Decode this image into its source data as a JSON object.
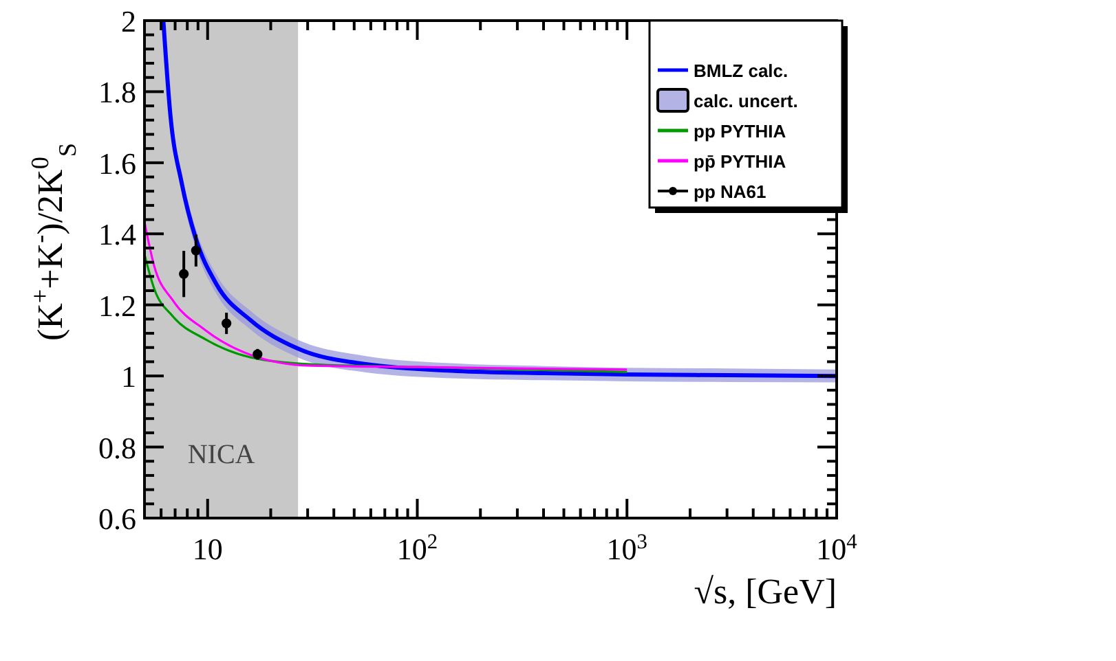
{
  "chart_data": {
    "type": "line",
    "xlabel": "√s, [GeV]",
    "ylabel": "(K$^{+}$+K$^{-}$)/2K$^{0}$$_{S}$",
    "log": "x",
    "xlim": [
      5,
      10000
    ],
    "xticks": [
      {
        "value": 6,
        "label": null
      },
      {
        "value": 7,
        "label": null
      },
      {
        "value": 8,
        "label": null
      },
      {
        "value": 9,
        "label": null
      },
      10,
      {
        "value": 20,
        "label": null
      },
      {
        "value": 30,
        "label": null
      },
      {
        "value": 40,
        "label": null
      },
      {
        "value": 50,
        "label": null
      },
      {
        "value": 60,
        "label": null
      },
      {
        "value": 70,
        "label": null
      },
      {
        "value": 80,
        "label": null
      },
      {
        "value": 90,
        "label": null
      },
      {
        "value": 100,
        "label": "10$^{2}$"
      },
      {
        "value": 200,
        "label": null
      },
      {
        "value": 300,
        "label": null
      },
      {
        "value": 400,
        "label": null
      },
      {
        "value": 500,
        "label": null
      },
      {
        "value": 600,
        "label": null
      },
      {
        "value": 700,
        "label": null
      },
      {
        "value": 800,
        "label": null
      },
      {
        "value": 900,
        "label": null
      },
      {
        "value": 1000,
        "label": "10$^{3}$"
      },
      {
        "value": 2000,
        "label": null
      },
      {
        "value": 3000,
        "label": null
      },
      {
        "value": 4000,
        "label": null
      },
      {
        "value": 5000,
        "label": null
      },
      {
        "value": 6000,
        "label": null
      },
      {
        "value": 7000,
        "label": null
      },
      {
        "value": 8000,
        "label": null
      },
      {
        "value": 9000,
        "label": null
      },
      {
        "value": 10000,
        "label": "10$^{4}$"
      }
    ],
    "ylim": [
      0.6,
      2
    ],
    "yticks": [
      0.6,
      {
        "value": 0.64,
        "label": null
      },
      {
        "value": 0.68,
        "label": null
      },
      {
        "value": 0.72,
        "label": null
      },
      {
        "value": 0.76,
        "label": null
      },
      0.8,
      {
        "value": 0.84,
        "label": null
      },
      {
        "value": 0.88,
        "label": null
      },
      {
        "value": 0.92,
        "label": null
      },
      {
        "value": 0.96,
        "label": null
      },
      1,
      {
        "value": 1.04,
        "label": null
      },
      {
        "value": 1.08,
        "label": null
      },
      {
        "value": 1.12,
        "label": null
      },
      {
        "value": 1.16,
        "label": null
      },
      1.2,
      {
        "value": 1.24,
        "label": null
      },
      {
        "value": 1.28,
        "label": null
      },
      {
        "value": 1.32,
        "label": null
      },
      {
        "value": 1.36,
        "label": null
      },
      1.4,
      {
        "value": 1.44,
        "label": null
      },
      {
        "value": 1.48,
        "label": null
      },
      {
        "value": 1.52,
        "label": null
      },
      {
        "value": 1.56,
        "label": null
      },
      1.6,
      {
        "value": 1.64,
        "label": null
      },
      {
        "value": 1.68,
        "label": null
      },
      {
        "value": 1.72,
        "label": null
      },
      {
        "value": 1.76,
        "label": null
      },
      1.8,
      {
        "value": 1.84,
        "label": null
      },
      {
        "value": 1.88,
        "label": null
      },
      {
        "value": 1.92,
        "label": null
      },
      {
        "value": 1.96,
        "label": null
      },
      2
    ],
    "bands": [
      {
        "axis": "x",
        "from": 5,
        "to": 27,
        "label": "NICA",
        "color": "#c8c8c8"
      }
    ],
    "annotations": [
      "calc. uncert."
    ],
    "legend": "top right",
    "series": [
      {
        "name": "BMLZ calc.",
        "type": "line",
        "color": "#0000ff",
        "x": [
          6.15,
          6.64,
          7.53,
          8.77,
          11,
          16.1,
          26.7,
          56.9,
          155,
          400,
          1000,
          3000,
          10000
        ],
        "values": [
          2,
          1.736,
          1.542,
          1.388,
          1.259,
          1.156,
          1.078,
          1.033,
          1.014,
          1.008,
          1.004,
          1.002,
          1.0
        ],
        "lower": [
          1.97,
          1.71,
          1.515,
          1.36,
          1.232,
          1.13,
          1.053,
          1.01,
          0.993,
          0.988,
          0.985,
          0.983,
          0.982
        ],
        "upper": [
          2,
          1.76,
          1.568,
          1.415,
          1.286,
          1.182,
          1.103,
          1.056,
          1.035,
          1.028,
          1.023,
          1.021,
          1.018
        ]
      },
      {
        "name": "pp PYTHIA",
        "type": "line",
        "color": "#009900",
        "x": [
          5,
          5.56,
          6.82,
          9.7,
          16.1,
          30.9,
          100,
          330,
          1000
        ],
        "values": [
          1.342,
          1.246,
          1.168,
          1.104,
          1.052,
          1.033,
          1.025,
          1.018,
          1.011
        ]
      },
      {
        "name": "pp̄ PYTHIA",
        "type": "line",
        "color": "#ff00ff",
        "x": [
          5,
          5.56,
          6.82,
          9.7,
          16.1,
          30.9,
          100,
          330,
          1000
        ],
        "values": [
          1.433,
          1.31,
          1.213,
          1.13,
          1.059,
          1.029,
          1.025,
          1.021,
          1.018
        ]
      },
      {
        "name": "pp NA61",
        "type": "scatter",
        "color": "#000000",
        "marker": "circle",
        "x": [
          7.7,
          8.8,
          12.3,
          17.3
        ],
        "values": [
          1.287,
          1.353,
          1.148,
          1.061
        ],
        "errors": [
          0.065,
          0.045,
          0.03,
          0.015
        ]
      }
    ]
  }
}
